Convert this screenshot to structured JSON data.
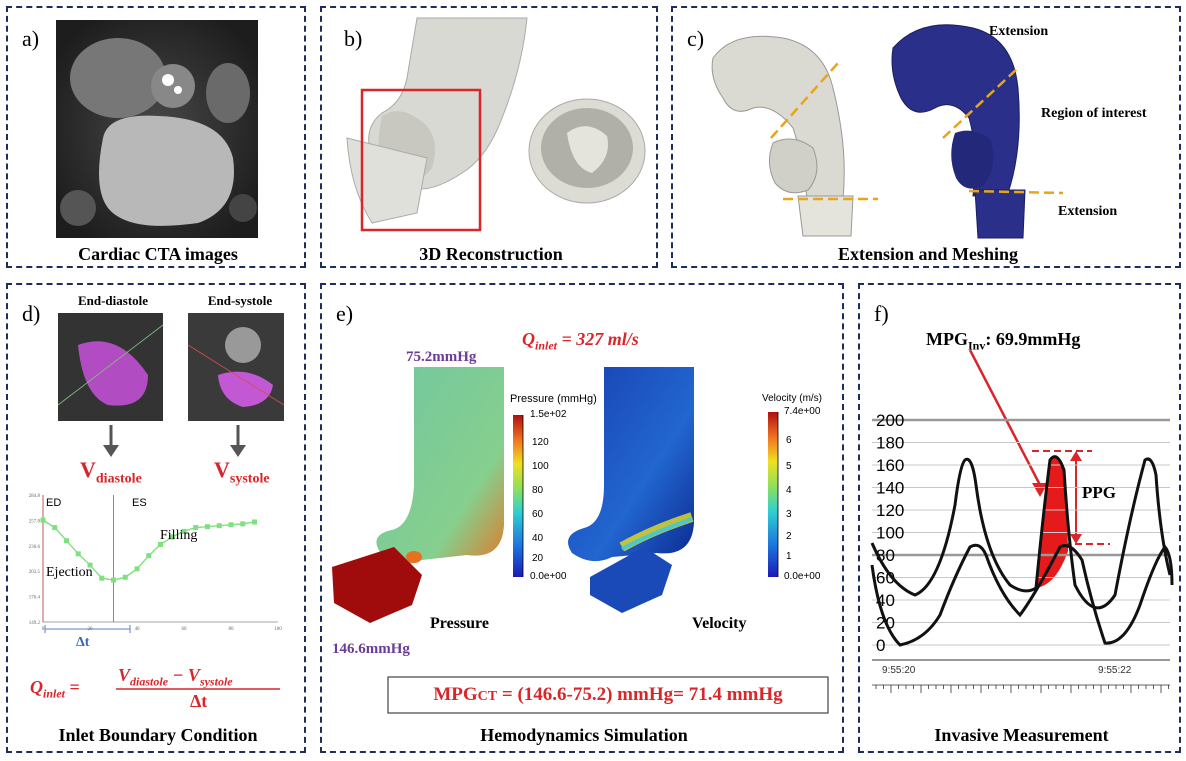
{
  "panels": {
    "a": {
      "label": "a)",
      "caption": "Cardiac CTA images"
    },
    "b": {
      "label": "b)",
      "caption": "3D Reconstruction"
    },
    "c": {
      "label": "c)",
      "caption": "Extension and Meshing",
      "ext_top": "Extension",
      "roi": "Region of interest",
      "ext_bottom": "Extension"
    },
    "d": {
      "label": "d)",
      "caption": "Inlet Boundary Condition",
      "end_diastole": "End-diastole",
      "end_systole": "End-systole",
      "v_diastole_base": "V",
      "v_diastole_sub": "diastole",
      "v_systole_base": "V",
      "v_systole_sub": "systole",
      "graph": {
        "ed": "ED",
        "es": "ES",
        "ejection": "Ejection",
        "filling": "Filling",
        "dt": "Δt",
        "yticks": [
          "284.8",
          "257.8",
          "230.6",
          "203.5",
          "176.4",
          "149.2"
        ],
        "xticks": [
          "0",
          "20",
          "40",
          "60",
          "80",
          "100"
        ]
      },
      "formula": {
        "lhs_base": "Q",
        "lhs_sub": "inlet",
        "eq": "=",
        "num": "V",
        "num_sub1": "diastole",
        "minus": " − V",
        "num_sub2": "systole",
        "den": "Δt"
      }
    },
    "e": {
      "label": "e)",
      "caption": "Hemodynamics Simulation",
      "q_base": "Q",
      "q_sub": "inlet",
      "q_value": " = 327 ml/s",
      "p_top": "75.2mmHg",
      "p_bottom": "146.6mmHg",
      "pressure": "Pressure",
      "velocity": "Velocity",
      "mpg_base": "MPG",
      "mpg_sub": "CT",
      "mpg_rest": " = (146.6-75.2) mmHg= 71.4 mmHg",
      "pressure_bar": {
        "title": "Pressure (mmHg)",
        "max": "1.5e+02",
        "ticks": [
          "120",
          "100",
          "80",
          "60",
          "40",
          "20"
        ],
        "min": "0.0e+00"
      },
      "velocity_bar": {
        "title": "Velocity (m/s)",
        "max": "7.4e+00",
        "ticks": [
          "6",
          "5",
          "4",
          "3",
          "2",
          "1"
        ],
        "min": "0.0e+00"
      }
    },
    "f": {
      "label": "f)",
      "caption": "Invasive Measurement",
      "mpg_base": "MPG",
      "mpg_sub": "Inv",
      "mpg_value": ": 69.9mmHg",
      "ppg": "PPG",
      "yticks": [
        "200",
        "180",
        "160",
        "140",
        "120",
        "100",
        "80",
        "60",
        "40",
        "20",
        "0"
      ],
      "times": [
        "9:55:20",
        "9:55:22"
      ]
    }
  },
  "chart_data": {
    "type": "line",
    "title": "",
    "xlabel": "",
    "ylabel": "",
    "x": [
      0,
      5,
      10,
      15,
      20,
      25,
      30,
      35,
      40,
      45,
      50,
      55,
      60,
      65,
      70,
      75,
      80,
      85,
      90
    ],
    "series": [
      {
        "values": [
          258,
          250,
          236,
          222,
          210,
          196,
          194,
          197,
          206,
          220,
          232,
          240,
          246,
          250,
          251,
          252,
          253,
          254,
          256
        ]
      }
    ],
    "xlim": [
      0,
      100
    ],
    "ylim": [
      149.2,
      284.8
    ],
    "markers": {
      "ED": 0,
      "ES": 30
    }
  }
}
